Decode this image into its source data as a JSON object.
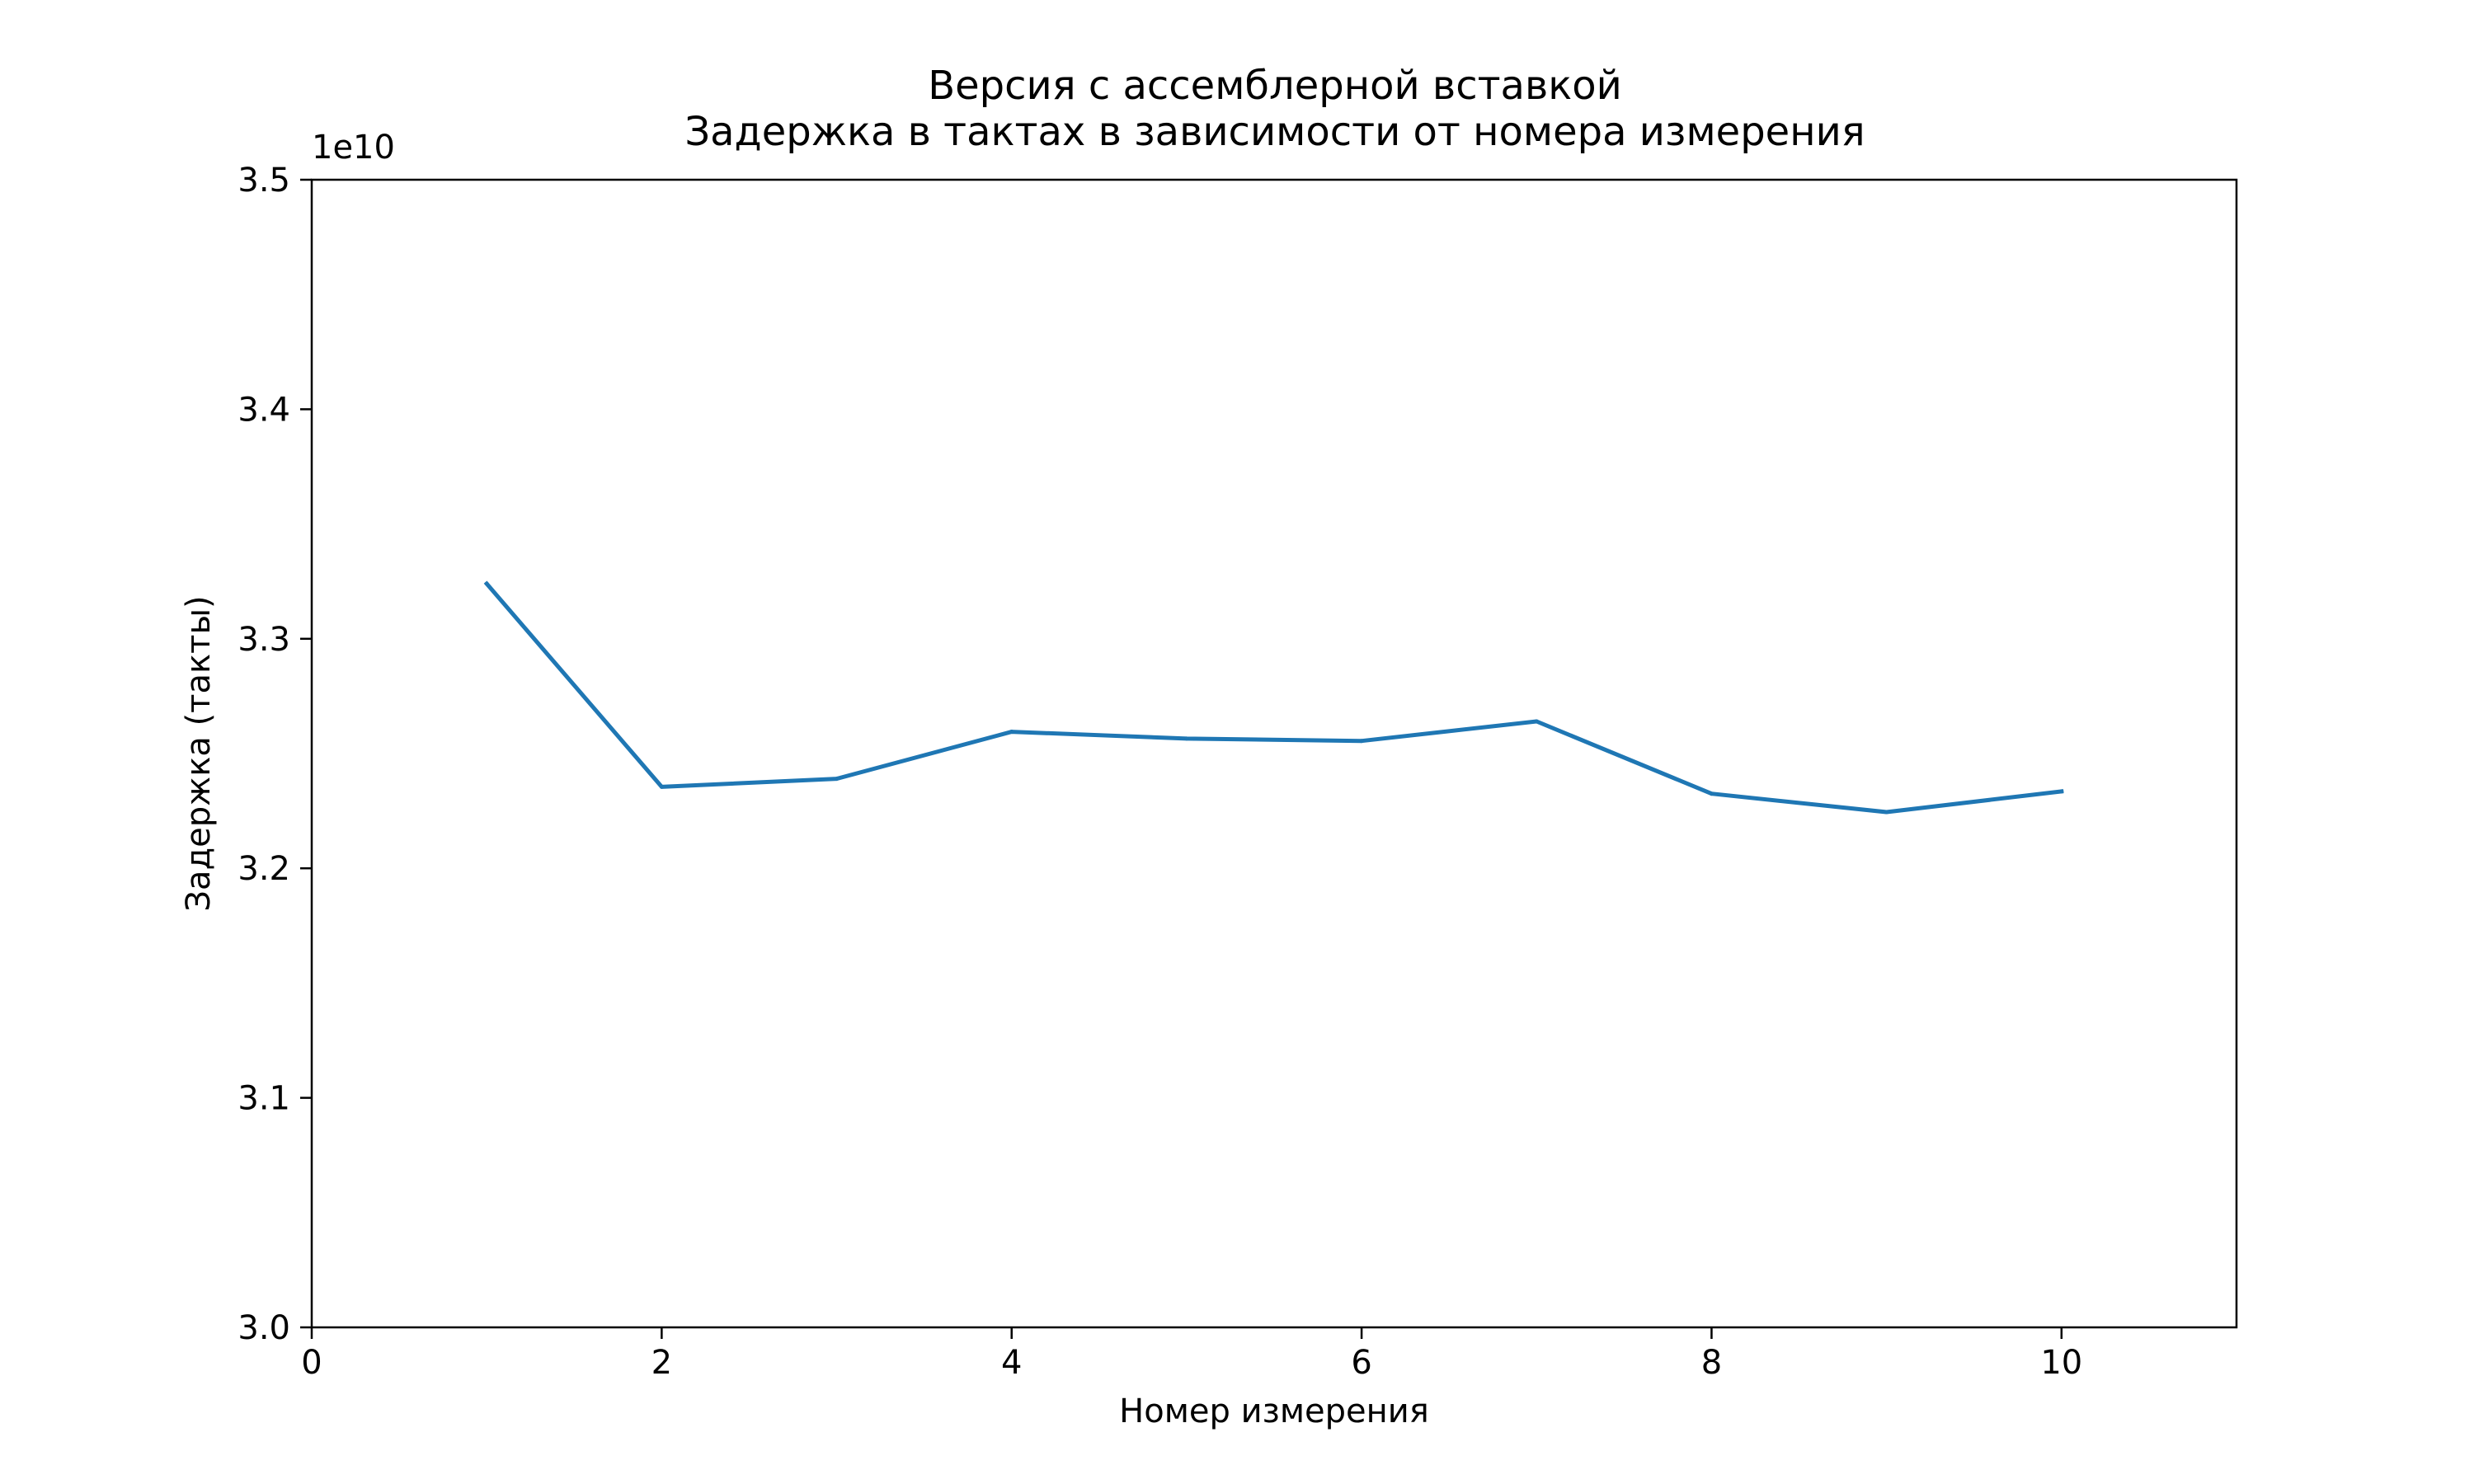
{
  "chart_data": {
    "type": "line",
    "title_line1": "Версия с ассемблерной вставкой",
    "title_line2": "Задержка в тактах в зависимости от номера измерения",
    "xlabel": "Номер измерения",
    "ylabel": "Задержка (такты)",
    "y_offset_label": "1e10",
    "xlim": [
      0,
      11
    ],
    "ylim": [
      3.0,
      3.5
    ],
    "x_ticks": [
      0,
      2,
      4,
      6,
      8,
      10
    ],
    "x_tick_labels": [
      "0",
      "2",
      "4",
      "6",
      "8",
      "10"
    ],
    "y_ticks": [
      3.0,
      3.1,
      3.2,
      3.3,
      3.4,
      3.5
    ],
    "y_tick_labels": [
      "3.0",
      "3.1",
      "3.2",
      "3.3",
      "3.4",
      "3.5"
    ],
    "grid": false,
    "series": [
      {
        "color": "#1f77b4",
        "x": [
          1,
          2,
          3,
          4,
          5,
          6,
          7,
          8,
          9,
          10
        ],
        "y": [
          3.324,
          3.2355,
          3.239,
          3.2595,
          3.2565,
          3.2555,
          3.264,
          3.2325,
          3.2245,
          3.2335
        ]
      }
    ]
  }
}
